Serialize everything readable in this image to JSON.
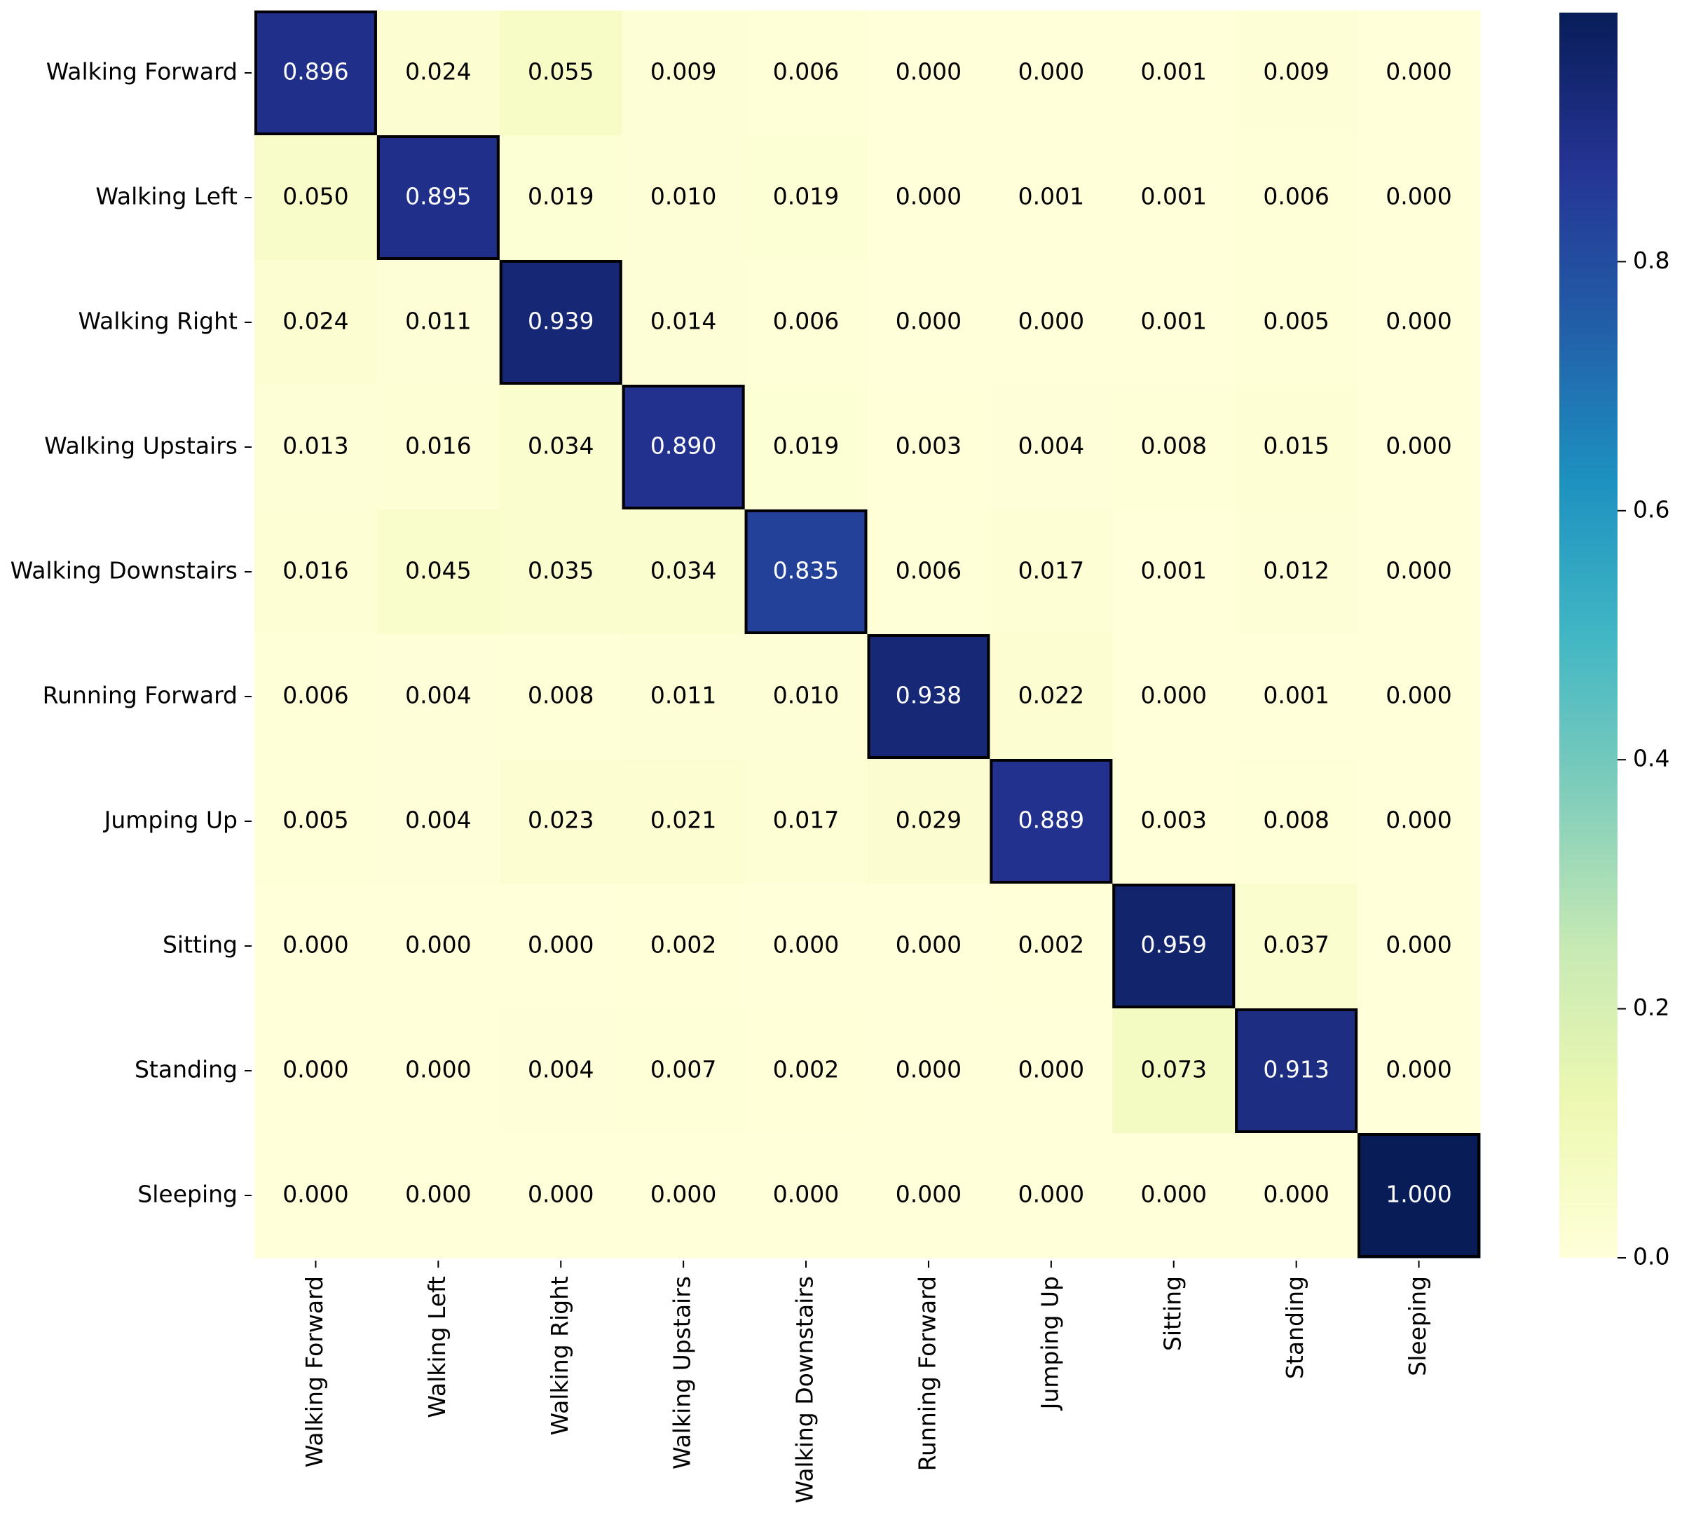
{
  "chart_data": {
    "type": "heatmap",
    "y_categories": [
      "Walking Forward",
      "Walking Left",
      "Walking Right",
      "Walking Upstairs",
      "Walking Downstairs",
      "Running Forward",
      "Jumping Up",
      "Sitting",
      "Standing",
      "Sleeping"
    ],
    "x_categories": [
      "Walking Forward",
      "Walking Left",
      "Walking Right",
      "Walking Upstairs",
      "Walking Downstairs",
      "Running Forward",
      "Jumping Up",
      "Sitting",
      "Standing",
      "Sleeping"
    ],
    "values": [
      [
        0.896,
        0.024,
        0.055,
        0.009,
        0.006,
        0,
        0,
        0.001,
        0.009,
        0
      ],
      [
        0.05,
        0.895,
        0.019,
        0.01,
        0.019,
        0,
        0.001,
        0.001,
        0.006,
        0
      ],
      [
        0.024,
        0.011,
        0.939,
        0.014,
        0.006,
        0,
        0,
        0.001,
        0.005,
        0
      ],
      [
        0.013,
        0.016,
        0.034,
        0.89,
        0.019,
        0.003,
        0.004,
        0.008,
        0.015,
        0
      ],
      [
        0.016,
        0.045,
        0.035,
        0.034,
        0.835,
        0.006,
        0.017,
        0.001,
        0.012,
        0
      ],
      [
        0.006,
        0.004,
        0.008,
        0.011,
        0.01,
        0.938,
        0.022,
        0,
        0.001,
        0
      ],
      [
        0.005,
        0.004,
        0.023,
        0.021,
        0.017,
        0.029,
        0.889,
        0.003,
        0.008,
        0
      ],
      [
        0,
        0,
        0,
        0.002,
        0,
        0,
        0.002,
        0.959,
        0.037,
        0
      ],
      [
        0,
        0,
        0.004,
        0.007,
        0.002,
        0,
        0,
        0.073,
        0.913,
        0
      ],
      [
        0,
        0,
        0,
        0,
        0,
        0,
        0,
        0,
        0,
        1
      ]
    ],
    "value_labels": [
      [
        "0.896",
        "0.024",
        "0.055",
        "0.009",
        "0.006",
        "0.000",
        "0.000",
        "0.001",
        "0.009",
        "0.000"
      ],
      [
        "0.050",
        "0.895",
        "0.019",
        "0.010",
        "0.019",
        "0.000",
        "0.001",
        "0.001",
        "0.006",
        "0.000"
      ],
      [
        "0.024",
        "0.011",
        "0.939",
        "0.014",
        "0.006",
        "0.000",
        "0.000",
        "0.001",
        "0.005",
        "0.000"
      ],
      [
        "0.013",
        "0.016",
        "0.034",
        "0.890",
        "0.019",
        "0.003",
        "0.004",
        "0.008",
        "0.015",
        "0.000"
      ],
      [
        "0.016",
        "0.045",
        "0.035",
        "0.034",
        "0.835",
        "0.006",
        "0.017",
        "0.001",
        "0.012",
        "0.000"
      ],
      [
        "0.006",
        "0.004",
        "0.008",
        "0.011",
        "0.010",
        "0.938",
        "0.022",
        "0.000",
        "0.001",
        "0.000"
      ],
      [
        "0.005",
        "0.004",
        "0.023",
        "0.021",
        "0.017",
        "0.029",
        "0.889",
        "0.003",
        "0.008",
        "0.000"
      ],
      [
        "0.000",
        "0.000",
        "0.000",
        "0.002",
        "0.000",
        "0.000",
        "0.002",
        "0.959",
        "0.037",
        "0.000"
      ],
      [
        "0.000",
        "0.000",
        "0.004",
        "0.007",
        "0.002",
        "0.000",
        "0.000",
        "0.073",
        "0.913",
        "0.000"
      ],
      [
        "0.000",
        "0.000",
        "0.000",
        "0.000",
        "0.000",
        "0.000",
        "0.000",
        "0.000",
        "0.000",
        "1.000"
      ]
    ],
    "colormap": "YlGnBu",
    "clim": [
      0,
      1
    ],
    "cticks": [
      {
        "value": 0,
        "label": "0.0"
      },
      0.2,
      0.4,
      0.6,
      0.8
    ]
  }
}
